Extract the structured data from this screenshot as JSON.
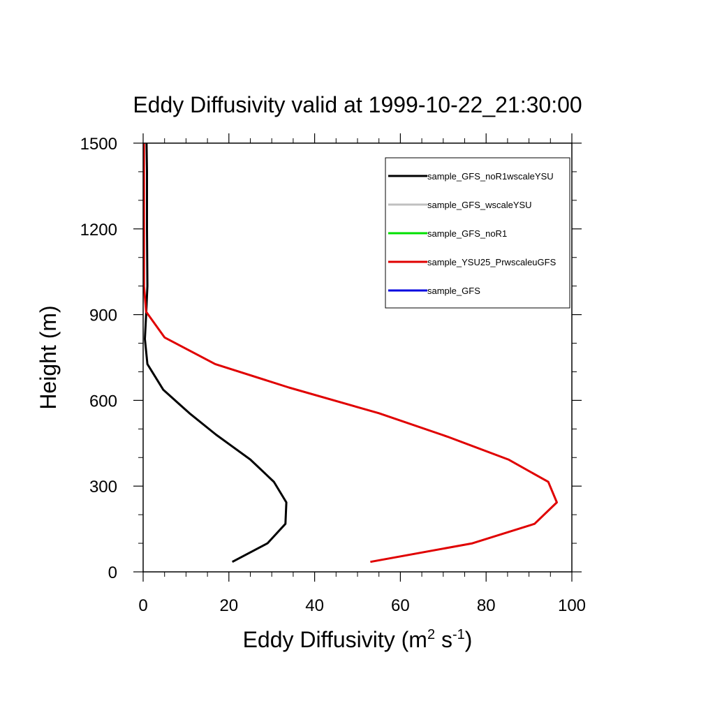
{
  "chart_data": {
    "type": "line",
    "title": "Eddy Diffusivity valid at 1999-10-22_21:30:00",
    "xlabel_main": "Eddy Diffusivity (m",
    "xlabel_sup1": "2",
    "xlabel_mid": " s",
    "xlabel_sup2": "-1",
    "xlabel_end": ")",
    "ylabel": "Height (m)",
    "xlim": [
      0,
      100
    ],
    "ylim": [
      0,
      1500
    ],
    "xticks": [
      0,
      20,
      40,
      60,
      80,
      100
    ],
    "yticks": [
      0,
      300,
      600,
      900,
      1200,
      1500
    ],
    "xtick_labels": [
      "0",
      "20",
      "40",
      "60",
      "80",
      "100"
    ],
    "ytick_labels": [
      "0",
      "300",
      "600",
      "900",
      "1200",
      "1500"
    ],
    "x_minor_step": 5,
    "y_minor_step": 100,
    "grid": false,
    "legend_position": "top-right",
    "series": [
      {
        "name": "sample_GFS_noR1wscaleYSU",
        "color": "#000000",
        "points": [
          [
            20.8,
            35
          ],
          [
            29.0,
            100
          ],
          [
            33.2,
            168
          ],
          [
            33.4,
            243
          ],
          [
            30.5,
            315
          ],
          [
            25.0,
            393
          ],
          [
            17.0,
            480
          ],
          [
            10.8,
            555
          ],
          [
            4.7,
            637
          ],
          [
            1.0,
            727
          ],
          [
            0.4,
            815
          ],
          [
            0.7,
            900
          ],
          [
            1.0,
            1000
          ],
          [
            0.9,
            1200
          ],
          [
            0.9,
            1400
          ],
          [
            0.8,
            1500
          ]
        ]
      },
      {
        "name": "sample_GFS_wscaleYSU",
        "color": "#c0c0c0",
        "points": []
      },
      {
        "name": "sample_GFS_noR1",
        "color": "#00e000",
        "points": []
      },
      {
        "name": "sample_YSU25_PrwscaleuGFS",
        "color": "#e00000",
        "points": [
          [
            53.0,
            35
          ],
          [
            76.8,
            100
          ],
          [
            91.3,
            168
          ],
          [
            96.5,
            243
          ],
          [
            94.5,
            315
          ],
          [
            85.2,
            393
          ],
          [
            71.0,
            473
          ],
          [
            55.0,
            555
          ],
          [
            34.0,
            645
          ],
          [
            16.8,
            727
          ],
          [
            5.0,
            820
          ],
          [
            0.7,
            910
          ],
          [
            0.2,
            1000
          ],
          [
            0.2,
            1200
          ],
          [
            0.2,
            1400
          ],
          [
            0.2,
            1500
          ]
        ]
      },
      {
        "name": "sample_GFS",
        "color": "#0000e0",
        "points": []
      }
    ]
  }
}
